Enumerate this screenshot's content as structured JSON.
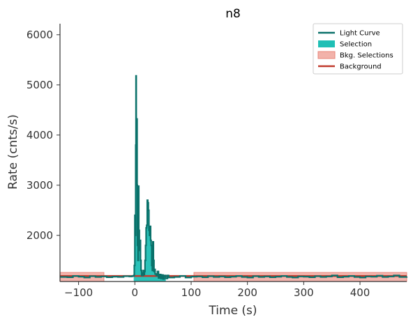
{
  "chart_data": {
    "type": "line",
    "title": "n8",
    "xlabel": "Time (s)",
    "ylabel": "Rate (cnts/s)",
    "xlim": [
      -133,
      483
    ],
    "ylim": [
      1080,
      6220
    ],
    "x_ticks": [
      -100,
      0,
      100,
      200,
      300,
      400
    ],
    "y_ticks": [
      2000,
      3000,
      4000,
      5000,
      6000
    ],
    "x_tick_labels": [
      "−100",
      "0",
      "100",
      "200",
      "300",
      "400"
    ],
    "y_tick_labels": [
      "2000",
      "3000",
      "4000",
      "5000",
      "6000"
    ],
    "legend_position": "top-right",
    "legend": [
      {
        "label": "Light Curve",
        "kind": "line",
        "color": "#0a716a"
      },
      {
        "label": "Selection",
        "kind": "patch",
        "color": "#1fbfb5"
      },
      {
        "label": "Bkg. Selections",
        "kind": "patch",
        "color": "#f2b2aa"
      },
      {
        "label": "Background",
        "kind": "line",
        "color": "#c0392b"
      }
    ],
    "colors": {
      "light_curve": "#0a716a",
      "selection": "#1fbfb5",
      "bkg_selection_fill": "#f4b5ad",
      "bkg_selection_edge": "#e8857a",
      "background": "#c0392b",
      "axis": "#333333"
    },
    "background_level": 1190,
    "background_range": [
      -133,
      483
    ],
    "bkg_selections": [
      [
        -133,
        -55
      ],
      [
        105,
        483
      ]
    ],
    "selection_range": [
      -2,
      55
    ],
    "light_curve": [
      [
        -133,
        1170
      ],
      [
        -120,
        1165
      ],
      [
        -110,
        1190
      ],
      [
        -100,
        1175
      ],
      [
        -90,
        1160
      ],
      [
        -80,
        1185
      ],
      [
        -70,
        1170
      ],
      [
        -60,
        1180
      ],
      [
        -50,
        1165
      ],
      [
        -40,
        1175
      ],
      [
        -30,
        1170
      ],
      [
        -20,
        1185
      ],
      [
        -10,
        1180
      ],
      [
        -5,
        1190
      ],
      [
        -2,
        1200
      ],
      [
        -1,
        1400
      ],
      [
        0,
        2400
      ],
      [
        1,
        2000
      ],
      [
        1.5,
        3800
      ],
      [
        2,
        5180
      ],
      [
        2.5,
        4200
      ],
      [
        3,
        3300
      ],
      [
        3.5,
        4320
      ],
      [
        4,
        3000
      ],
      [
        4.5,
        1800
      ],
      [
        5,
        2100
      ],
      [
        5.5,
        1500
      ],
      [
        6,
        2980
      ],
      [
        7,
        2100
      ],
      [
        8,
        1700
      ],
      [
        9,
        1900
      ],
      [
        10,
        1500
      ],
      [
        11,
        1300
      ],
      [
        12,
        1200
      ],
      [
        13,
        1250
      ],
      [
        14,
        1200
      ],
      [
        15,
        1300
      ],
      [
        16,
        1220
      ],
      [
        17,
        1280
      ],
      [
        18,
        1500
      ],
      [
        19,
        1800
      ],
      [
        20,
        2150
      ],
      [
        21,
        2200
      ],
      [
        22,
        2700
      ],
      [
        23,
        2650
      ],
      [
        24,
        2500
      ],
      [
        25,
        2100
      ],
      [
        26,
        2000
      ],
      [
        27,
        2180
      ],
      [
        28,
        1900
      ],
      [
        29,
        1800
      ],
      [
        30,
        1400
      ],
      [
        31,
        1300
      ],
      [
        32,
        1870
      ],
      [
        33,
        1500
      ],
      [
        34,
        1280
      ],
      [
        35,
        1320
      ],
      [
        36,
        1230
      ],
      [
        38,
        1200
      ],
      [
        40,
        1280
      ],
      [
        42,
        1150
      ],
      [
        44,
        1220
      ],
      [
        46,
        1140
      ],
      [
        48,
        1210
      ],
      [
        50,
        1130
      ],
      [
        52,
        1200
      ],
      [
        55,
        1140
      ],
      [
        58,
        1200
      ],
      [
        60,
        1160
      ],
      [
        70,
        1170
      ],
      [
        80,
        1190
      ],
      [
        90,
        1160
      ],
      [
        100,
        1175
      ],
      [
        110,
        1180
      ],
      [
        120,
        1165
      ],
      [
        130,
        1185
      ],
      [
        140,
        1170
      ],
      [
        150,
        1180
      ],
      [
        160,
        1165
      ],
      [
        170,
        1175
      ],
      [
        180,
        1190
      ],
      [
        190,
        1170
      ],
      [
        200,
        1160
      ],
      [
        210,
        1185
      ],
      [
        220,
        1170
      ],
      [
        230,
        1180
      ],
      [
        240,
        1165
      ],
      [
        250,
        1175
      ],
      [
        260,
        1190
      ],
      [
        270,
        1170
      ],
      [
        280,
        1160
      ],
      [
        290,
        1180
      ],
      [
        300,
        1175
      ],
      [
        310,
        1165
      ],
      [
        320,
        1185
      ],
      [
        330,
        1170
      ],
      [
        340,
        1180
      ],
      [
        350,
        1200
      ],
      [
        360,
        1165
      ],
      [
        370,
        1175
      ],
      [
        380,
        1190
      ],
      [
        390,
        1170
      ],
      [
        400,
        1160
      ],
      [
        410,
        1180
      ],
      [
        420,
        1175
      ],
      [
        430,
        1195
      ],
      [
        440,
        1170
      ],
      [
        450,
        1180
      ],
      [
        460,
        1200
      ],
      [
        470,
        1170
      ],
      [
        483,
        1180
      ]
    ]
  }
}
